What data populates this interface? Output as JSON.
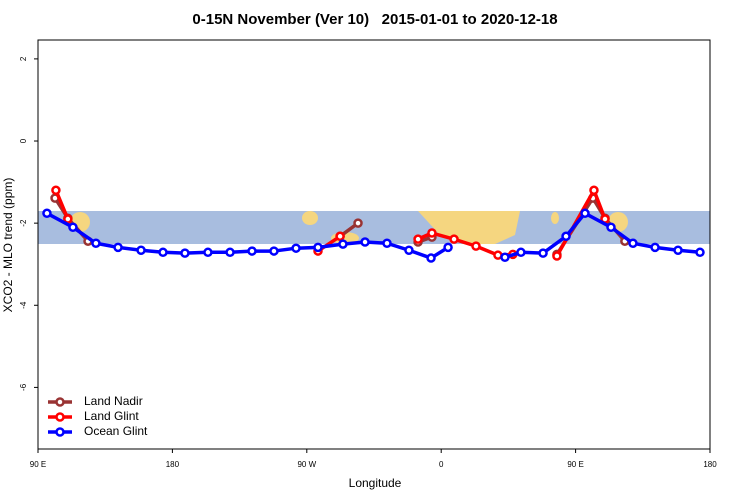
{
  "chart_data": {
    "type": "line",
    "title": "0-15N November (Ver 10)   2015-01-01 to 2020-12-18",
    "xlabel": "Longitude",
    "ylabel": "XCO2 - MLO trend (ppm)",
    "xlim": [
      90,
      540
    ],
    "ylim": [
      -7.5,
      2.46
    ],
    "xticks": [
      {
        "value": 90,
        "label": "90 E"
      },
      180,
      {
        "value": 270,
        "label": "90 W"
      },
      {
        "value": 360,
        "label": "0"
      },
      {
        "value": 450,
        "label": "90 E"
      },
      {
        "value": 540,
        "label": "180"
      }
    ],
    "yticks": [
      2,
      0,
      -2,
      -4,
      -6
    ],
    "legend": "bottom-left",
    "series": [
      {
        "name": "Land Nadir",
        "color": "#993333",
        "x": [
          101.4,
          110,
          123.5,
          null,
          292.3,
          304.3,
          null,
          344.5,
          353.8,
          null,
          437.5,
          461.6,
          469.7,
          483
        ],
        "values": [
          -1.39,
          -1.88,
          -2.44,
          null,
          -2.32,
          -2.0,
          null,
          -2.46,
          -2.34,
          null,
          -2.76,
          -1.39,
          -1.88,
          -2.44
        ]
      },
      {
        "name": "Land Glint",
        "color": "#ff0000",
        "x": [
          102,
          110,
          null,
          277.5,
          292.3,
          null,
          344.5,
          353.8,
          368.6,
          383.3,
          398,
          408,
          null,
          437.5,
          462.3,
          469.7
        ],
        "values": [
          -1.2,
          -1.9,
          null,
          -2.68,
          -2.32,
          null,
          -2.39,
          -2.24,
          -2.39,
          -2.56,
          -2.78,
          -2.76,
          null,
          -2.8,
          -1.2,
          -1.9
        ]
      },
      {
        "name": "Ocean Glint",
        "color": "#0000ff",
        "x": [
          96,
          113.4,
          128.8,
          143.6,
          159,
          173.7,
          188.4,
          203.8,
          218.6,
          233.3,
          248,
          262.8,
          277.5,
          294.2,
          309,
          323.7,
          338.4,
          353.2,
          364.6,
          null,
          402.7,
          413.4,
          428.2,
          443.6,
          456.3,
          473.7,
          488.4,
          503.2,
          518.6,
          533.3
        ],
        "values": [
          -1.76,
          -2.1,
          -2.49,
          -2.59,
          -2.66,
          -2.71,
          -2.73,
          -2.71,
          -2.71,
          -2.68,
          -2.68,
          -2.61,
          -2.59,
          -2.51,
          -2.46,
          -2.49,
          -2.66,
          -2.85,
          -2.59,
          null,
          -2.83,
          -2.71,
          -2.73,
          -2.32,
          -1.76,
          -2.1,
          -2.49,
          -2.59,
          -2.66,
          -2.71
        ]
      }
    ]
  }
}
